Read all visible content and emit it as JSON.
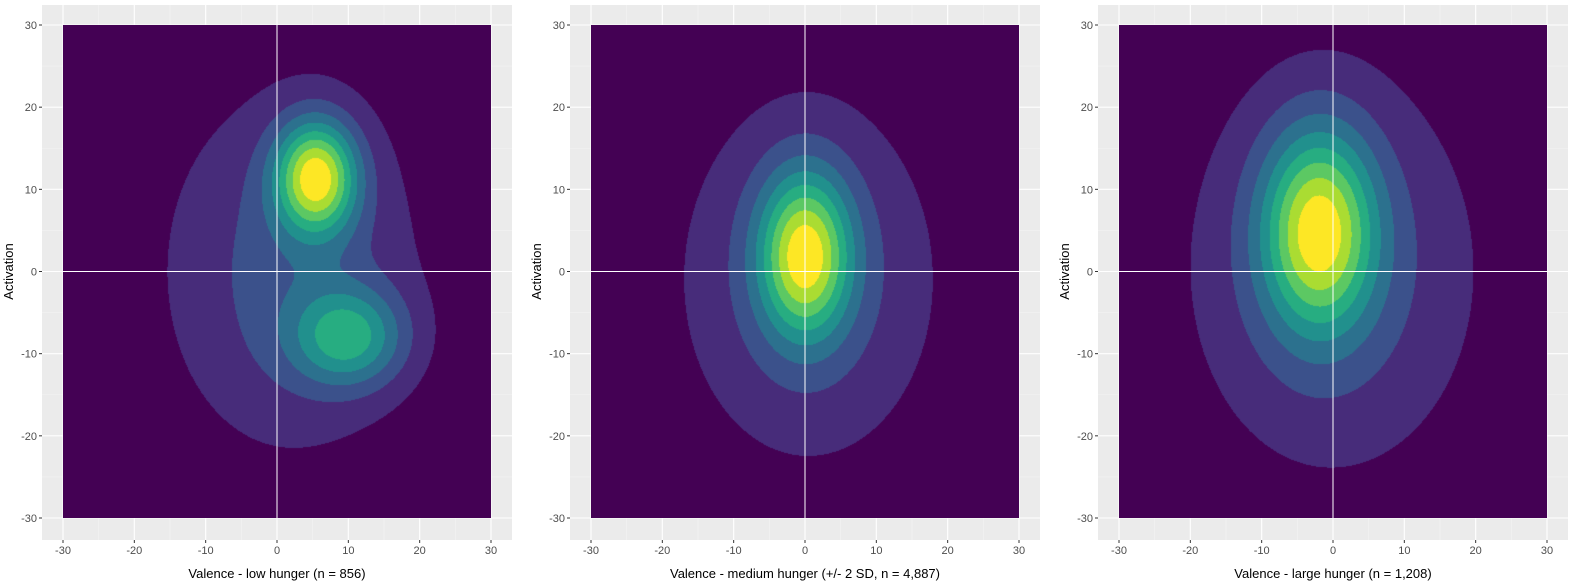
{
  "palette": {
    "panel_background": "#ebebeb",
    "grid_major": "#ffffff",
    "grid_minor": "#f3f3f3",
    "reference_line": "#ffffff",
    "levels": [
      "#440154",
      "#472c7a",
      "#3b518b",
      "#2c718e",
      "#21908d",
      "#27ad81",
      "#5cc863",
      "#aadc32",
      "#fde725"
    ]
  },
  "chart_data": [
    {
      "type": "filled-contour-density",
      "xlabel": "Valence - low hunger (n = 856)",
      "ylabel": "Activation",
      "xlim": [
        -30,
        30
      ],
      "ylim": [
        -30,
        30
      ],
      "xticks": [
        -30,
        -20,
        -10,
        0,
        10,
        20,
        30
      ],
      "yticks": [
        -30,
        -20,
        -10,
        0,
        10,
        20,
        30
      ],
      "grid": true,
      "reference_lines": {
        "x": 0,
        "y": 0
      },
      "density_model": [
        {
          "cx": 5.5,
          "cy": 11.5,
          "sx": 4.0,
          "sy": 4.8,
          "w": 1.0
        },
        {
          "cx": 10.0,
          "cy": -8.0,
          "sx": 5.5,
          "sy": 4.2,
          "w": 0.58
        },
        {
          "cx": 2.0,
          "cy": 0.0,
          "sx": 13.0,
          "sy": 16.0,
          "w": 0.34
        }
      ]
    },
    {
      "type": "filled-contour-density",
      "xlabel": "Valence - medium hunger (+/- 2 SD, n = 4,887)",
      "ylabel": "Activation",
      "xlim": [
        -30,
        30
      ],
      "ylim": [
        -30,
        30
      ],
      "xticks": [
        -30,
        -20,
        -10,
        0,
        10,
        20,
        30
      ],
      "yticks": [
        -30,
        -20,
        -10,
        0,
        10,
        20,
        30
      ],
      "grid": true,
      "reference_lines": {
        "x": 0,
        "y": 0
      },
      "density_model": [
        {
          "cx": 0.0,
          "cy": 2.0,
          "sx": 4.5,
          "sy": 7.0,
          "w": 1.0
        },
        {
          "cx": 0.5,
          "cy": -1.0,
          "sx": 13.5,
          "sy": 16.5,
          "w": 0.34
        }
      ]
    },
    {
      "type": "filled-contour-density",
      "xlabel": "Valence - large hunger (n = 1,208)",
      "ylabel": "Activation",
      "xlim": [
        -30,
        30
      ],
      "ylim": [
        -30,
        30
      ],
      "xticks": [
        -30,
        -20,
        -10,
        0,
        10,
        20,
        30
      ],
      "yticks": [
        -30,
        -20,
        -10,
        0,
        10,
        20,
        30
      ],
      "grid": true,
      "reference_lines": {
        "x": 0,
        "y": 0
      },
      "density_model": [
        {
          "cx": -2.0,
          "cy": 5.0,
          "sx": 5.5,
          "sy": 8.5,
          "w": 1.0
        },
        {
          "cx": 0.0,
          "cy": 0.0,
          "sx": 15.0,
          "sy": 18.0,
          "w": 0.35
        }
      ]
    }
  ]
}
